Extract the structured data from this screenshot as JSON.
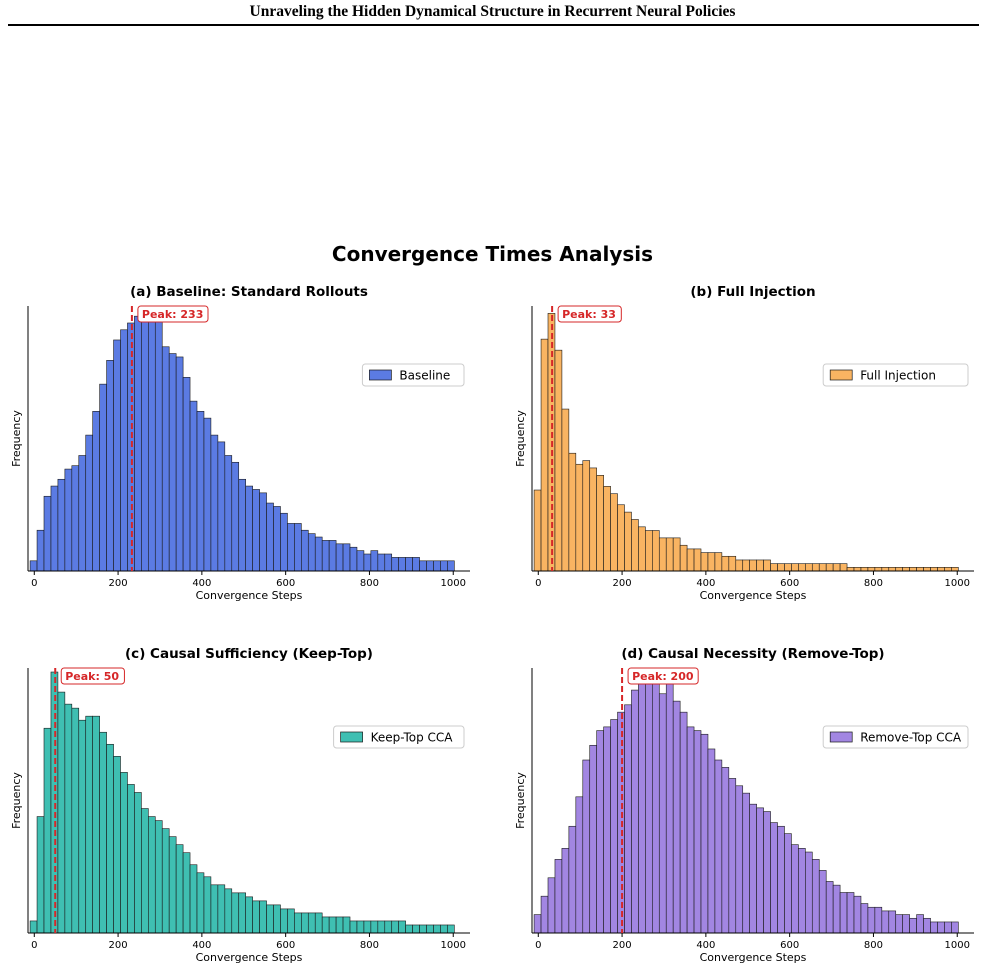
{
  "header": {
    "running_title": "Unraveling the Hidden Dynamical Structure in Recurrent Neural Policies"
  },
  "figure": {
    "title": "Convergence Times Analysis"
  },
  "colors": {
    "peak_line": "#d62728",
    "bar_edge": "#1a1a1a"
  },
  "chart_data": [
    {
      "type": "bar",
      "title": "(a) Baseline: Standard Rollouts",
      "xlabel": "Convergence Steps",
      "ylabel": "Frequency",
      "xlim": [
        -15,
        1040
      ],
      "xticks": [
        0,
        200,
        400,
        600,
        800,
        1000
      ],
      "bin_start": -10,
      "bin_width": 16.6,
      "values": [
        3,
        12,
        22,
        25,
        27,
        30,
        31,
        34,
        40,
        47,
        55,
        62,
        68,
        71,
        73,
        75,
        77,
        74,
        77,
        66,
        64,
        63,
        57,
        50,
        47,
        45,
        40,
        38,
        34,
        32,
        27,
        25,
        24,
        23,
        20,
        19,
        17,
        14,
        14,
        12,
        11,
        10,
        9,
        9,
        8,
        8,
        7,
        6,
        5,
        6,
        5,
        5,
        4,
        4,
        4,
        4,
        3,
        3,
        3,
        3,
        3
      ],
      "ylim": [
        0,
        78
      ],
      "peak": 233,
      "peak_label": "Peak: 233",
      "legend": "Baseline",
      "legend_position": "right",
      "color": "#5b7be3"
    },
    {
      "type": "bar",
      "title": "(b) Full Injection",
      "xlabel": "Convergence Steps",
      "ylabel": "Frequency",
      "xlim": [
        -15,
        1040
      ],
      "xticks": [
        0,
        200,
        400,
        600,
        800,
        1000
      ],
      "bin_start": -10,
      "bin_width": 16.6,
      "values": [
        22,
        63,
        70,
        60,
        44,
        32,
        29,
        30,
        28,
        26,
        23,
        21,
        18,
        16,
        14,
        12,
        11,
        11,
        9,
        9,
        9,
        7,
        6,
        6,
        5,
        5,
        5,
        4,
        4,
        3,
        3,
        3,
        3,
        3,
        2,
        2,
        2,
        2,
        2,
        2,
        2,
        2,
        2,
        2,
        2,
        1,
        1,
        1,
        1,
        1,
        1,
        1,
        1,
        1,
        1,
        1,
        1,
        1,
        1,
        1,
        1
      ],
      "ylim": [
        0,
        72
      ],
      "peak": 33,
      "peak_label": "Peak: 33",
      "legend": "Full Injection",
      "legend_position": "right",
      "color": "#f9b462"
    },
    {
      "type": "bar",
      "title": "(c) Causal Sufficiency (Keep-Top)",
      "xlabel": "Convergence Steps",
      "ylabel": "Frequency",
      "xlim": [
        -15,
        1040
      ],
      "xticks": [
        0,
        200,
        400,
        600,
        800,
        1000
      ],
      "bin_start": -10,
      "bin_width": 16.6,
      "values": [
        3,
        29,
        51,
        65,
        60,
        57,
        56,
        53,
        54,
        54,
        50,
        47,
        44,
        40,
        37,
        35,
        31,
        29,
        28,
        26,
        24,
        22,
        20,
        17,
        15,
        14,
        12,
        12,
        11,
        10,
        10,
        9,
        8,
        8,
        7,
        7,
        6,
        6,
        5,
        5,
        5,
        5,
        4,
        4,
        4,
        4,
        3,
        3,
        3,
        3,
        3,
        3,
        3,
        3,
        2,
        2,
        2,
        2,
        2,
        2,
        2
      ],
      "ylim": [
        0,
        66
      ],
      "peak": 50,
      "peak_label": "Peak: 50",
      "legend": "Keep-Top CCA",
      "legend_position": "right",
      "color": "#3fbfb2"
    },
    {
      "type": "bar",
      "title": "(d) Causal Necessity (Remove-Top)",
      "xlabel": "Convergence Steps",
      "ylabel": "Frequency",
      "xlim": [
        -15,
        1040
      ],
      "xticks": [
        0,
        200,
        400,
        600,
        800,
        1000
      ],
      "bin_start": -10,
      "bin_width": 16.6,
      "values": [
        5,
        10,
        15,
        20,
        23,
        29,
        37,
        47,
        51,
        55,
        56,
        58,
        60,
        62,
        66,
        70,
        69,
        71,
        65,
        70,
        63,
        60,
        56,
        55,
        54,
        50,
        47,
        45,
        42,
        40,
        38,
        35,
        34,
        33,
        30,
        29,
        27,
        24,
        23,
        22,
        20,
        17,
        14,
        13,
        11,
        11,
        10,
        8,
        7,
        7,
        6,
        6,
        5,
        5,
        4,
        5,
        4,
        3,
        3,
        3,
        3
      ],
      "ylim": [
        0,
        72
      ],
      "peak": 200,
      "peak_label": "Peak: 200",
      "legend": "Remove-Top CCA",
      "legend_position": "right",
      "color": "#a286e2"
    }
  ]
}
